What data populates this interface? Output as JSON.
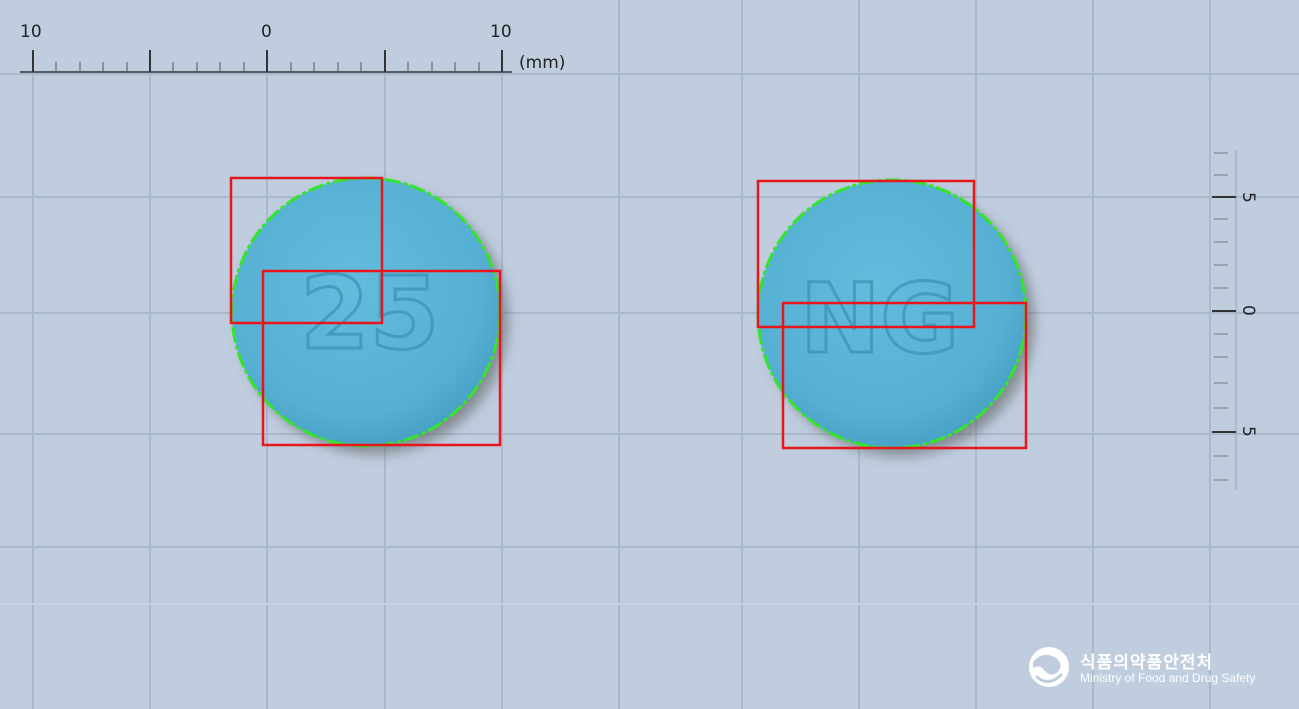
{
  "ruler_horizontal": {
    "labels": [
      "10",
      "0",
      "10"
    ],
    "unit": "(mm)"
  },
  "ruler_vertical": {
    "labels": [
      "5",
      "0",
      "5"
    ]
  },
  "pills": [
    {
      "imprint": "25",
      "color": "#5bb5d6"
    },
    {
      "imprint": "NG",
      "color": "#5bb5d6"
    }
  ],
  "colors": {
    "background": "#bfcddf",
    "grid": "#a9b8cb",
    "box": "#e8161b",
    "contour": "#33e62a",
    "pill": "#5bb5d6"
  },
  "logo": {
    "icon": "mfds-emblem-icon",
    "name_ko": "식품의약품안전처",
    "name_en": "Ministry of Food and Drug Safety"
  }
}
